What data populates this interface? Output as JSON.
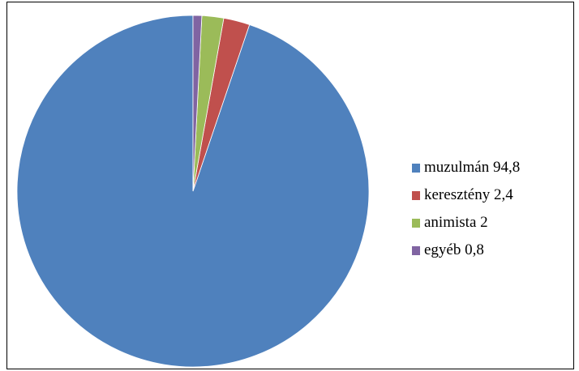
{
  "chart_data": {
    "type": "pie",
    "categories": [
      "muzulmán 94,8",
      "keresztény 2,4",
      "animista 2",
      "egyéb 0,8"
    ],
    "values": [
      94.8,
      2.4,
      2,
      0.8
    ],
    "colors": [
      "#4f81bd",
      "#c0504d",
      "#9bbb59",
      "#8064a2"
    ],
    "start_angle": "12 o'clock",
    "direction": "counter-clockwise",
    "legend_position": "right"
  }
}
